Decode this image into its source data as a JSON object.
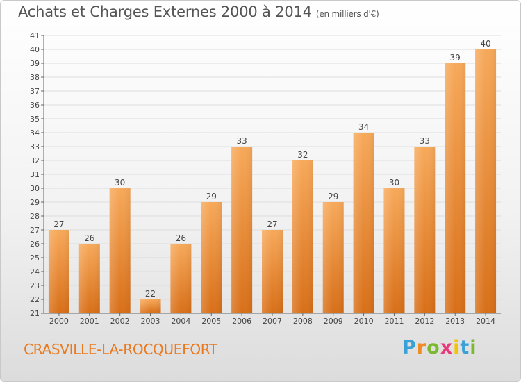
{
  "title": "Achats et Charges Externes 2000 à 2014",
  "subtitle": "(en milliers d'€)",
  "town": "CRASVILLE-LA-ROCQUEFORT",
  "logo": {
    "letters": [
      "P",
      "r",
      "o",
      "x",
      "i",
      "t",
      "i"
    ],
    "colors": [
      "#3aa1d8",
      "#f08a24",
      "#7cb930",
      "#e83a7b",
      "#f5c400",
      "#3aa1d8",
      "#7cb930"
    ]
  },
  "colors": {
    "bar_top": "#f7a95a",
    "bar_bottom": "#d86f18",
    "grid": "#dddddd",
    "axis": "#666666"
  },
  "chart_data": {
    "type": "bar",
    "categories": [
      "2000",
      "2001",
      "2002",
      "2003",
      "2004",
      "2005",
      "2006",
      "2007",
      "2008",
      "2009",
      "2010",
      "2011",
      "2012",
      "2013",
      "2014"
    ],
    "values": [
      27,
      26,
      30,
      22,
      26,
      29,
      33,
      27,
      32,
      29,
      34,
      30,
      33,
      39,
      40
    ],
    "ylim": [
      21,
      41
    ],
    "yticks": [
      21,
      22,
      23,
      24,
      25,
      26,
      27,
      28,
      29,
      30,
      31,
      32,
      33,
      34,
      35,
      36,
      37,
      38,
      39,
      40,
      41
    ],
    "grid": true
  }
}
